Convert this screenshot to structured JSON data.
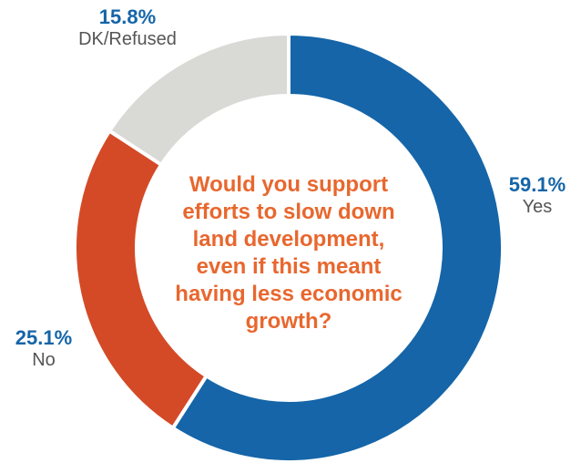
{
  "chart_data": {
    "type": "pie",
    "donut": true,
    "title": "",
    "center_text": [
      "Would you support",
      "efforts to slow down",
      "land development,",
      "even if this meant",
      "having less economic",
      "growth?"
    ],
    "center_text_color": "#e8672e",
    "slices": [
      {
        "label": "Yes",
        "value": 59.1,
        "value_label": "59.1%",
        "color": "#1565a8"
      },
      {
        "label": "No",
        "value": 25.1,
        "value_label": "25.1%",
        "color": "#d44a27"
      },
      {
        "label": "DK/Refused",
        "value": 15.8,
        "value_label": "15.8%",
        "color": "#d9d9d6"
      }
    ]
  }
}
